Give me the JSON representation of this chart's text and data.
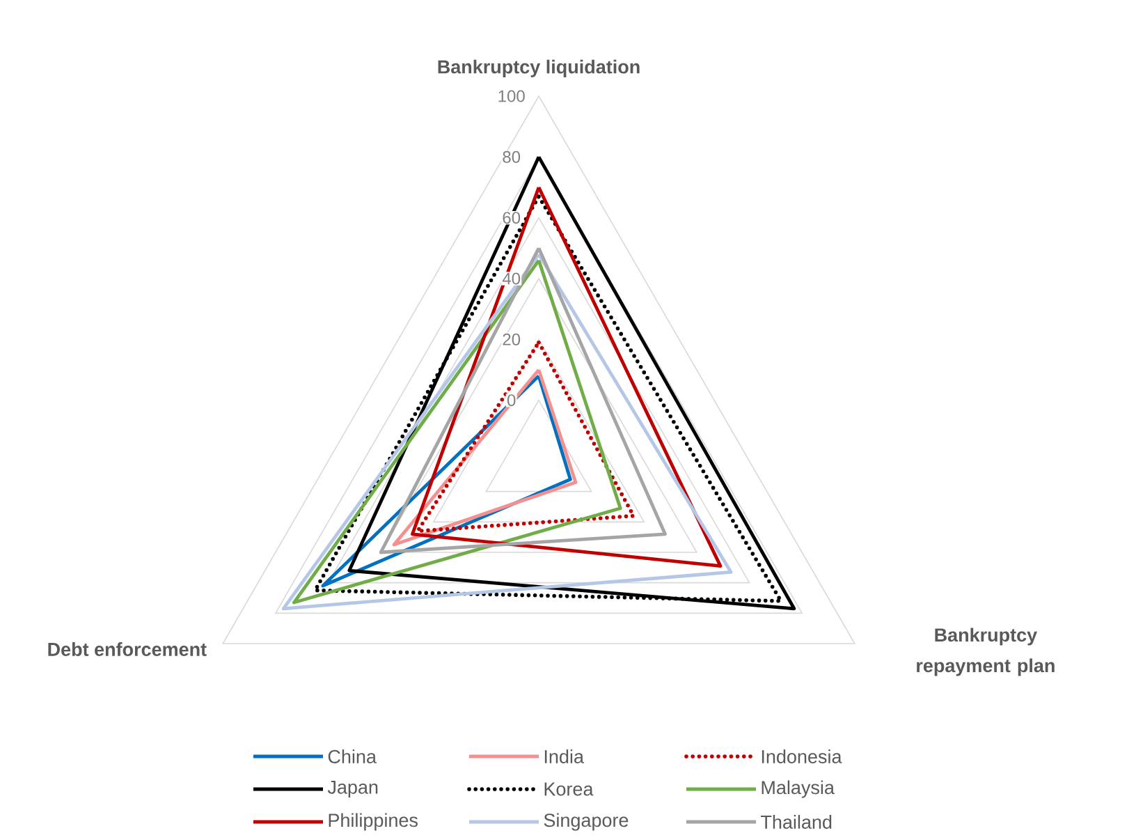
{
  "chart_data": {
    "type": "radar",
    "categories": [
      "Bankruptcy liquidation",
      "Bankruptcy repayment plan",
      "Debt enforcement"
    ],
    "ylim": [
      -20,
      100
    ],
    "yticks": [
      0,
      20,
      40,
      60,
      80,
      100
    ],
    "grid": true,
    "legend": "bottom",
    "series": [
      {
        "name": "China",
        "color": "#0070c0",
        "values": [
          8,
          -8,
          62
        ]
      },
      {
        "name": "India",
        "color": "#f4908f",
        "values": [
          10,
          -6,
          35
        ]
      },
      {
        "name": "Indonesia",
        "color": "#c00000",
        "line_style": "dotted",
        "values": [
          19,
          16,
          26
        ]
      },
      {
        "name": "Japan",
        "color": "#000000",
        "values": [
          80,
          77,
          52
        ]
      },
      {
        "name": "Korea",
        "color": "#000000",
        "line_style": "dotted",
        "values": [
          67,
          72,
          65
        ]
      },
      {
        "name": "Malaysia",
        "color": "#70ad47",
        "values": [
          46,
          11,
          73
        ]
      },
      {
        "name": "Philippines",
        "color": "#c00000",
        "values": [
          70,
          49,
          28
        ]
      },
      {
        "name": "Singapore",
        "color": "#b4c7e7",
        "values": [
          48,
          53,
          77
        ]
      },
      {
        "name": "Thailand",
        "color": "#a5a5a5",
        "values": [
          50,
          28,
          40
        ]
      }
    ]
  }
}
